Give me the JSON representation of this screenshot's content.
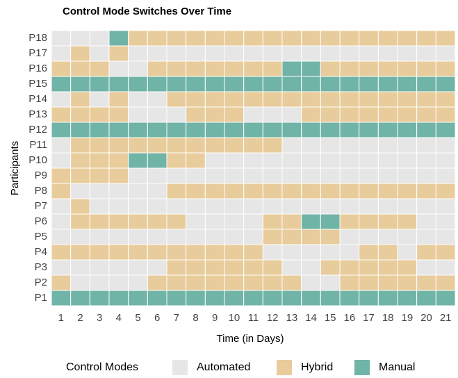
{
  "chart_data": {
    "type": "heatmap",
    "title": "Control Mode Switches Over Time",
    "x_label": "Time (in Days)",
    "y_label": "Participants",
    "legend_title": "Control Modes",
    "x": [
      1,
      2,
      3,
      4,
      5,
      6,
      7,
      8,
      9,
      10,
      11,
      12,
      13,
      14,
      15,
      16,
      17,
      18,
      19,
      20,
      21
    ],
    "rows": [
      "P1",
      "P2",
      "P3",
      "P4",
      "P5",
      "P6",
      "P7",
      "P8",
      "P9",
      "P10",
      "P11",
      "P12",
      "P13",
      "P14",
      "P15",
      "P16",
      "P17",
      "P18"
    ],
    "series": [
      {
        "name": "Automated",
        "color": "#e6e6e6"
      },
      {
        "name": "Hybrid",
        "color": "#e9cc9b"
      },
      {
        "name": "Manual",
        "color": "#70b4a7"
      }
    ],
    "z": [
      [
        "Manual",
        "Manual",
        "Manual",
        "Manual",
        "Manual",
        "Manual",
        "Manual",
        "Manual",
        "Manual",
        "Manual",
        "Manual",
        "Manual",
        "Manual",
        "Manual",
        "Manual",
        "Manual",
        "Manual",
        "Manual",
        "Manual",
        "Manual",
        "Manual"
      ],
      [
        "Hybrid",
        "Automated",
        "Automated",
        "Automated",
        "Automated",
        "Hybrid",
        "Hybrid",
        "Hybrid",
        "Hybrid",
        "Hybrid",
        "Hybrid",
        "Hybrid",
        "Hybrid",
        "Automated",
        "Automated",
        "Hybrid",
        "Hybrid",
        "Hybrid",
        "Hybrid",
        "Hybrid",
        "Hybrid"
      ],
      [
        "Automated",
        "Automated",
        "Automated",
        "Automated",
        "Automated",
        "Automated",
        "Hybrid",
        "Hybrid",
        "Hybrid",
        "Hybrid",
        "Hybrid",
        "Hybrid",
        "Automated",
        "Automated",
        "Hybrid",
        "Hybrid",
        "Hybrid",
        "Hybrid",
        "Hybrid",
        "Automated",
        "Automated"
      ],
      [
        "Hybrid",
        "Hybrid",
        "Hybrid",
        "Hybrid",
        "Hybrid",
        "Hybrid",
        "Hybrid",
        "Hybrid",
        "Hybrid",
        "Hybrid",
        "Hybrid",
        "Automated",
        "Automated",
        "Automated",
        "Automated",
        "Automated",
        "Hybrid",
        "Hybrid",
        "Automated",
        "Hybrid",
        "Hybrid"
      ],
      [
        "Automated",
        "Automated",
        "Automated",
        "Automated",
        "Automated",
        "Automated",
        "Automated",
        "Automated",
        "Automated",
        "Automated",
        "Automated",
        "Hybrid",
        "Hybrid",
        "Hybrid",
        "Hybrid",
        "Automated",
        "Automated",
        "Automated",
        "Automated",
        "Automated",
        "Automated"
      ],
      [
        "Automated",
        "Hybrid",
        "Hybrid",
        "Hybrid",
        "Hybrid",
        "Hybrid",
        "Hybrid",
        "Automated",
        "Automated",
        "Automated",
        "Automated",
        "Hybrid",
        "Hybrid",
        "Manual",
        "Manual",
        "Hybrid",
        "Hybrid",
        "Hybrid",
        "Hybrid",
        "Automated",
        "Automated"
      ],
      [
        "Automated",
        "Hybrid",
        "Automated",
        "Automated",
        "Automated",
        "Automated",
        "Automated",
        "Automated",
        "Automated",
        "Automated",
        "Automated",
        "Automated",
        "Automated",
        "Automated",
        "Automated",
        "Automated",
        "Automated",
        "Automated",
        "Automated",
        "Automated",
        "Automated"
      ],
      [
        "Hybrid",
        "Automated",
        "Automated",
        "Automated",
        "Automated",
        "Automated",
        "Hybrid",
        "Hybrid",
        "Hybrid",
        "Hybrid",
        "Hybrid",
        "Hybrid",
        "Hybrid",
        "Hybrid",
        "Hybrid",
        "Hybrid",
        "Hybrid",
        "Hybrid",
        "Hybrid",
        "Hybrid",
        "Hybrid"
      ],
      [
        "Hybrid",
        "Hybrid",
        "Hybrid",
        "Hybrid",
        "Automated",
        "Automated",
        "Automated",
        "Automated",
        "Automated",
        "Automated",
        "Automated",
        "Automated",
        "Automated",
        "Automated",
        "Automated",
        "Automated",
        "Automated",
        "Automated",
        "Automated",
        "Automated",
        "Automated"
      ],
      [
        "Automated",
        "Hybrid",
        "Hybrid",
        "Hybrid",
        "Manual",
        "Manual",
        "Hybrid",
        "Hybrid",
        "Automated",
        "Automated",
        "Automated",
        "Automated",
        "Automated",
        "Automated",
        "Automated",
        "Automated",
        "Automated",
        "Automated",
        "Automated",
        "Automated",
        "Automated"
      ],
      [
        "Automated",
        "Hybrid",
        "Hybrid",
        "Hybrid",
        "Hybrid",
        "Hybrid",
        "Hybrid",
        "Hybrid",
        "Hybrid",
        "Hybrid",
        "Hybrid",
        "Hybrid",
        "Automated",
        "Automated",
        "Automated",
        "Automated",
        "Automated",
        "Automated",
        "Automated",
        "Automated",
        "Automated"
      ],
      [
        "Manual",
        "Manual",
        "Manual",
        "Manual",
        "Manual",
        "Manual",
        "Manual",
        "Manual",
        "Manual",
        "Manual",
        "Manual",
        "Manual",
        "Manual",
        "Manual",
        "Manual",
        "Manual",
        "Manual",
        "Manual",
        "Manual",
        "Manual",
        "Manual"
      ],
      [
        "Hybrid",
        "Hybrid",
        "Hybrid",
        "Hybrid",
        "Automated",
        "Automated",
        "Automated",
        "Hybrid",
        "Hybrid",
        "Hybrid",
        "Automated",
        "Automated",
        "Automated",
        "Hybrid",
        "Hybrid",
        "Hybrid",
        "Hybrid",
        "Hybrid",
        "Hybrid",
        "Hybrid",
        "Hybrid"
      ],
      [
        "Automated",
        "Hybrid",
        "Automated",
        "Hybrid",
        "Automated",
        "Automated",
        "Hybrid",
        "Hybrid",
        "Hybrid",
        "Hybrid",
        "Hybrid",
        "Hybrid",
        "Hybrid",
        "Hybrid",
        "Hybrid",
        "Hybrid",
        "Hybrid",
        "Hybrid",
        "Hybrid",
        "Hybrid",
        "Hybrid"
      ],
      [
        "Manual",
        "Manual",
        "Manual",
        "Manual",
        "Manual",
        "Manual",
        "Manual",
        "Manual",
        "Manual",
        "Manual",
        "Manual",
        "Manual",
        "Manual",
        "Manual",
        "Manual",
        "Manual",
        "Manual",
        "Manual",
        "Manual",
        "Manual",
        "Manual"
      ],
      [
        "Hybrid",
        "Hybrid",
        "Hybrid",
        "Automated",
        "Automated",
        "Hybrid",
        "Hybrid",
        "Hybrid",
        "Hybrid",
        "Hybrid",
        "Hybrid",
        "Hybrid",
        "Manual",
        "Manual",
        "Hybrid",
        "Hybrid",
        "Hybrid",
        "Hybrid",
        "Hybrid",
        "Hybrid",
        "Hybrid"
      ],
      [
        "Automated",
        "Hybrid",
        "Automated",
        "Hybrid",
        "Automated",
        "Automated",
        "Automated",
        "Automated",
        "Automated",
        "Automated",
        "Automated",
        "Automated",
        "Automated",
        "Automated",
        "Automated",
        "Automated",
        "Automated",
        "Automated",
        "Automated",
        "Automated",
        "Automated"
      ],
      [
        "Automated",
        "Automated",
        "Automated",
        "Manual",
        "Hybrid",
        "Hybrid",
        "Hybrid",
        "Hybrid",
        "Hybrid",
        "Hybrid",
        "Hybrid",
        "Hybrid",
        "Hybrid",
        "Hybrid",
        "Hybrid",
        "Hybrid",
        "Hybrid",
        "Hybrid",
        "Hybrid",
        "Hybrid",
        "Hybrid"
      ]
    ]
  }
}
